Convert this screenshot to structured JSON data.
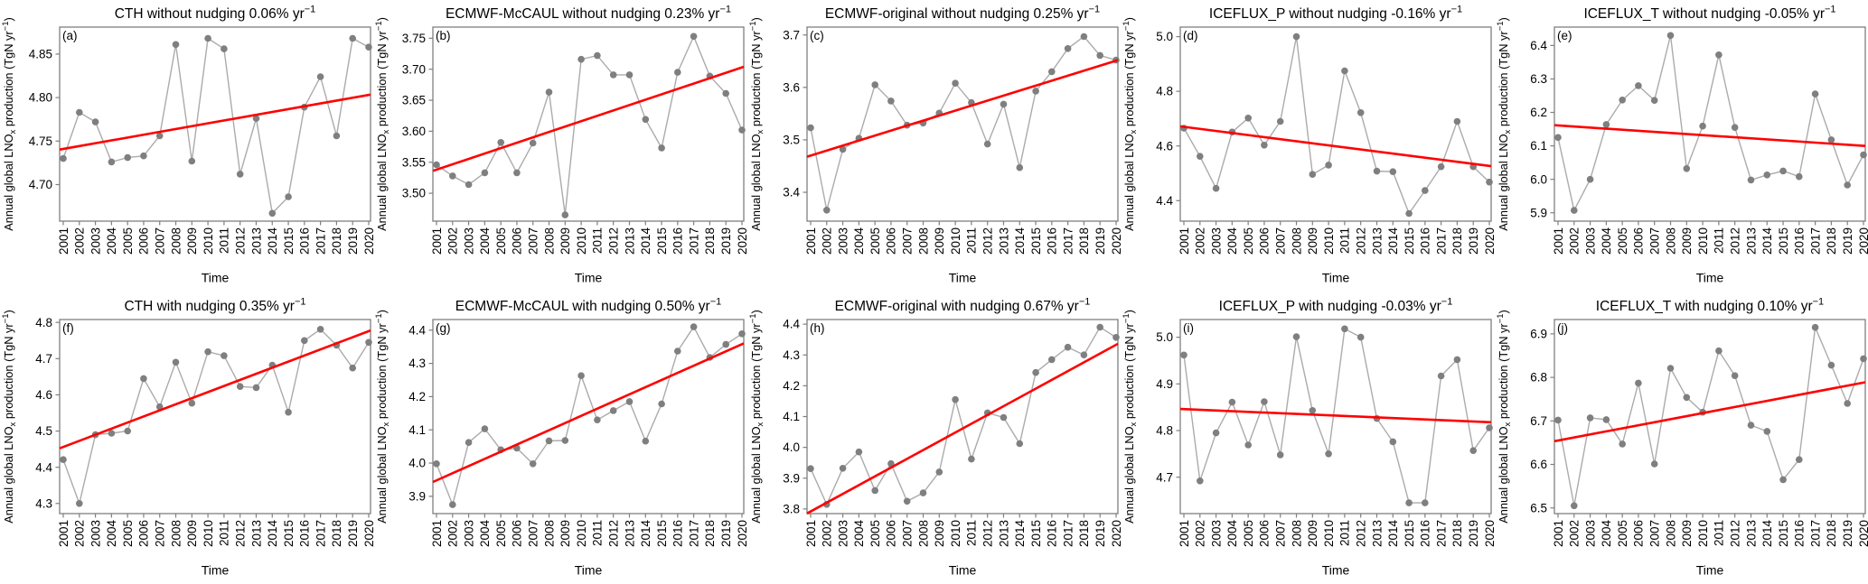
{
  "figure": {
    "xlabel": "Time",
    "ylabel": {
      "pre": "Annual global LNO",
      "sub": "x",
      "mid": " production (TgN yr",
      "sup": "−1",
      "post": ")"
    },
    "years": [
      2001,
      2002,
      2003,
      2004,
      2005,
      2006,
      2007,
      2008,
      2009,
      2010,
      2011,
      2012,
      2013,
      2014,
      2015,
      2016,
      2017,
      2018,
      2019,
      2020
    ],
    "colors": {
      "background": "#ffffff",
      "series_line": "#ababab",
      "marker": "#7f7f7f",
      "trend": "#ff0000",
      "spine": "#7f7f7f",
      "text": "#000000"
    }
  },
  "chart_data": [
    {
      "type": "line",
      "panel_id": "a",
      "panel": "(a)",
      "title": {
        "base": "CTH without nudging 0.06% yr",
        "sup": "−1"
      },
      "values": [
        4.73,
        4.783,
        4.772,
        4.726,
        4.731,
        4.733,
        4.756,
        4.861,
        4.727,
        4.868,
        4.856,
        4.712,
        4.776,
        4.667,
        4.686,
        4.789,
        4.824,
        4.756,
        4.868,
        4.858
      ],
      "trend_line": {
        "start": 4.741,
        "end": 4.803
      },
      "ylim": [
        4.658,
        4.881
      ],
      "yticks": [
        "4.70",
        "4.75",
        "4.80",
        "4.85"
      ]
    },
    {
      "type": "line",
      "panel_id": "b",
      "panel": "(b)",
      "title": {
        "base": "ECMWF-McCAUL without nudging 0.23% yr",
        "sup": "−1"
      },
      "values": [
        3.546,
        3.528,
        3.514,
        3.533,
        3.582,
        3.533,
        3.581,
        3.663,
        3.465,
        3.716,
        3.722,
        3.691,
        3.691,
        3.619,
        3.573,
        3.695,
        3.753,
        3.689,
        3.661,
        3.602
      ],
      "trend_line": {
        "start": 3.538,
        "end": 3.703
      },
      "ylim": [
        3.455,
        3.768
      ],
      "yticks": [
        "3.50",
        "3.55",
        "3.60",
        "3.65",
        "3.70",
        "3.75"
      ]
    },
    {
      "type": "line",
      "panel_id": "c",
      "panel": "(c)",
      "title": {
        "base": "ECMWF-original without nudging 0.25% yr",
        "sup": "−1"
      },
      "values": [
        3.523,
        3.366,
        3.482,
        3.503,
        3.605,
        3.574,
        3.528,
        3.532,
        3.551,
        3.608,
        3.571,
        3.492,
        3.568,
        3.447,
        3.593,
        3.63,
        3.674,
        3.697,
        3.661,
        3.652
      ],
      "trend_line": {
        "start": 3.47,
        "end": 3.651
      },
      "ylim": [
        3.345,
        3.715
      ],
      "yticks": [
        "3.4",
        "3.5",
        "3.6",
        "3.7"
      ]
    },
    {
      "type": "line",
      "panel_id": "d",
      "panel": "(d)",
      "title": {
        "base": "ICEFLUX_P without nudging -0.16% yr",
        "sup": "−1"
      },
      "values": [
        4.665,
        4.562,
        4.445,
        4.651,
        4.702,
        4.603,
        4.69,
        5.0,
        4.496,
        4.53,
        4.875,
        4.722,
        4.508,
        4.506,
        4.353,
        4.437,
        4.524,
        4.69,
        4.524,
        4.468
      ],
      "trend_line": {
        "start": 4.67,
        "end": 4.527
      },
      "ylim": [
        4.325,
        5.035
      ],
      "yticks": [
        "4.4",
        "4.6",
        "4.8",
        "5.0"
      ]
    },
    {
      "type": "line",
      "panel_id": "e",
      "panel": "(e)",
      "title": {
        "base": "ICEFLUX_T without nudging -0.05% yr",
        "sup": "−1"
      },
      "values": [
        6.125,
        5.907,
        6.0,
        6.164,
        6.237,
        6.28,
        6.236,
        6.43,
        6.032,
        6.159,
        6.372,
        6.155,
        5.998,
        6.013,
        6.025,
        6.008,
        6.255,
        6.118,
        5.983,
        6.073
      ],
      "trend_line": {
        "start": 6.161,
        "end": 6.1
      },
      "ylim": [
        5.875,
        6.455
      ],
      "yticks": [
        "5.9",
        "6.0",
        "6.1",
        "6.2",
        "6.3",
        "6.4"
      ]
    },
    {
      "type": "line",
      "panel_id": "f",
      "panel": "(f)",
      "title": {
        "base": "CTH with nudging 0.35% yr",
        "sup": "−1"
      },
      "values": [
        4.421,
        4.3,
        4.49,
        4.494,
        4.5,
        4.645,
        4.567,
        4.69,
        4.577,
        4.719,
        4.708,
        4.623,
        4.62,
        4.682,
        4.552,
        4.75,
        4.781,
        4.737,
        4.674,
        4.745
      ],
      "trend_line": {
        "start": 4.456,
        "end": 4.776
      },
      "ylim": [
        4.272,
        4.808
      ],
      "yticks": [
        "4.3",
        "4.4",
        "4.5",
        "4.6",
        "4.7",
        "4.8"
      ]
    },
    {
      "type": "line",
      "panel_id": "g",
      "panel": "(g)",
      "title": {
        "base": "ECMWF-McCAUL with nudging 0.50% yr",
        "sup": "−1"
      },
      "values": [
        3.998,
        3.875,
        4.062,
        4.103,
        4.04,
        4.045,
        3.998,
        4.067,
        4.068,
        4.263,
        4.13,
        4.158,
        4.185,
        4.066,
        4.178,
        4.337,
        4.41,
        4.318,
        4.357,
        4.389
      ],
      "trend_line": {
        "start": 3.948,
        "end": 4.358
      },
      "ylim": [
        3.848,
        4.432
      ],
      "yticks": [
        "3.9",
        "4.0",
        "4.1",
        "4.2",
        "4.3",
        "4.4"
      ]
    },
    {
      "type": "line",
      "panel_id": "h",
      "panel": "(h)",
      "title": {
        "base": "ECMWF-original with nudging 0.67% yr",
        "sup": "−1"
      },
      "values": [
        3.931,
        3.815,
        3.932,
        3.985,
        3.86,
        3.947,
        3.825,
        3.852,
        3.92,
        4.155,
        3.962,
        4.112,
        4.097,
        4.012,
        4.243,
        4.285,
        4.325,
        4.3,
        4.39,
        4.357
      ],
      "trend_line": {
        "start": 3.792,
        "end": 4.333
      },
      "ylim": [
        3.785,
        4.415
      ],
      "yticks": [
        "3.8",
        "3.9",
        "4.0",
        "4.1",
        "4.2",
        "4.3",
        "4.4"
      ]
    },
    {
      "type": "line",
      "panel_id": "i",
      "panel": "(i)",
      "title": {
        "base": "ICEFLUX_P with nudging -0.03% yr",
        "sup": "−1"
      },
      "values": [
        4.962,
        4.692,
        4.795,
        4.861,
        4.769,
        4.862,
        4.748,
        5.001,
        4.843,
        4.75,
        5.018,
        5.0,
        4.826,
        4.776,
        4.645,
        4.645,
        4.917,
        4.952,
        4.757,
        4.806
      ],
      "trend_line": {
        "start": 4.846,
        "end": 4.818
      },
      "ylim": [
        4.622,
        5.038
      ],
      "yticks": [
        "4.7",
        "4.8",
        "4.9",
        "5.0"
      ]
    },
    {
      "type": "line",
      "panel_id": "j",
      "panel": "(j)",
      "title": {
        "base": "ICEFLUX_T with nudging 0.10% yr",
        "sup": "−1"
      },
      "values": [
        6.702,
        6.505,
        6.707,
        6.703,
        6.647,
        6.787,
        6.601,
        6.821,
        6.754,
        6.72,
        6.861,
        6.804,
        6.69,
        6.676,
        6.565,
        6.611,
        6.915,
        6.828,
        6.74,
        6.843
      ],
      "trend_line": {
        "start": 6.655,
        "end": 6.788
      },
      "ylim": [
        6.487,
        6.933
      ],
      "yticks": [
        "6.5",
        "6.6",
        "6.7",
        "6.8",
        "6.9"
      ]
    }
  ]
}
